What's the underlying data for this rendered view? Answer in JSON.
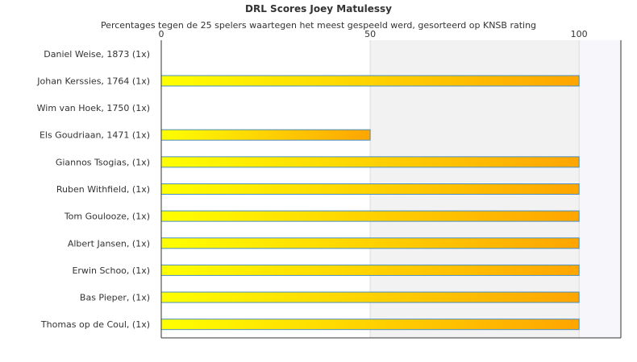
{
  "chart_data": {
    "type": "bar",
    "orientation": "horizontal",
    "title": "DRL Scores Joey Matulessy",
    "subtitle": "Percentages tegen de 25 spelers waartegen het meest gespeeld werd, gesorteerd op KNSB rating",
    "xlabel": "",
    "ylabel": "",
    "xlim": [
      0,
      110
    ],
    "x_ticks": [
      "0",
      "50",
      "100"
    ],
    "x_axis_position": "top",
    "grid": true,
    "legend": "none",
    "categories": [
      "Daniel Weise, 1873 (1x)",
      "Johan Kerssies, 1764 (1x)",
      "Wim van Hoek, 1750 (1x)",
      "Els Goudriaan, 1471 (1x)",
      "Giannos Tsogias,  (1x)",
      "Ruben Withfield,  (1x)",
      "Tom Goulooze,  (1x)",
      "Albert Jansen,  (1x)",
      "Erwin Schoo,  (1x)",
      "Bas Pieper,  (1x)",
      "Thomas op de Coul,  (1x)"
    ],
    "values": [
      0,
      100,
      0,
      50,
      100,
      100,
      100,
      100,
      100,
      100,
      100
    ],
    "colors": {
      "bar_start": "#ffff00",
      "bar_end": "#ffa500",
      "bar_stroke": "#4a8fc0",
      "band_light": "#ffffff",
      "band_shade": "#f2f2f2",
      "band_outer": "#f7f7fb",
      "axis": "#333333",
      "gridline": "#dcdcdc"
    }
  }
}
